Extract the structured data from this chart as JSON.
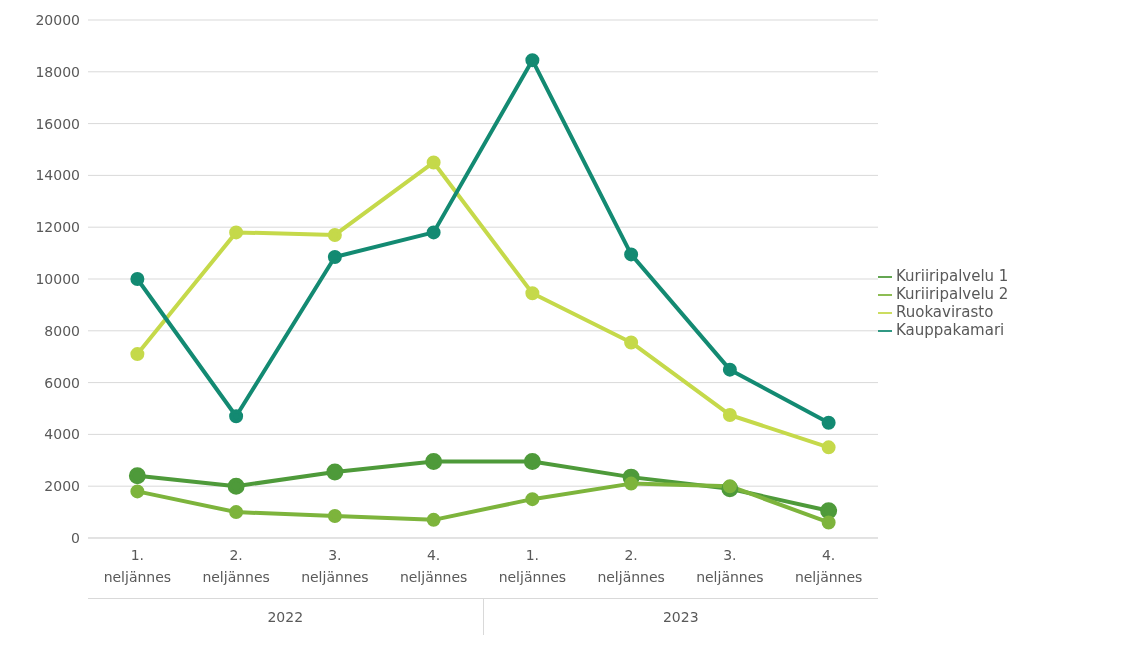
{
  "chart_data": {
    "type": "line",
    "categories": [
      "1. neljännes",
      "2. neljännes",
      "3. neljännes",
      "4. neljännes",
      "1. neljännes",
      "2. neljännes",
      "3. neljännes",
      "4. neljännes"
    ],
    "series": [
      {
        "name": "Kuriiripalvelu 1",
        "color": "#4e9a3a",
        "values": [
          2400,
          2000,
          2550,
          2950,
          2950,
          2350,
          1900,
          1050
        ]
      },
      {
        "name": "Kuriiripalvelu 2",
        "color": "#7db43c",
        "values": [
          1800,
          1000,
          850,
          700,
          1500,
          2100,
          2000,
          600
        ]
      },
      {
        "name": "Ruokavirasto",
        "color": "#c5d94a",
        "values": [
          7100,
          11800,
          11700,
          14500,
          9450,
          7550,
          4750,
          3500
        ]
      },
      {
        "name": "Kauppakamari",
        "color": "#138a72",
        "values": [
          10000,
          4700,
          10850,
          11800,
          18450,
          10950,
          6500,
          4450
        ]
      }
    ],
    "ylim": [
      0,
      20000
    ],
    "yticks": [
      0,
      2000,
      4000,
      6000,
      8000,
      10000,
      12000,
      14000,
      16000,
      18000,
      20000
    ],
    "grid": "y",
    "legend": "right",
    "marker": "circle",
    "line_style": "solid",
    "annotations": [
      "2022",
      "2023"
    ]
  }
}
